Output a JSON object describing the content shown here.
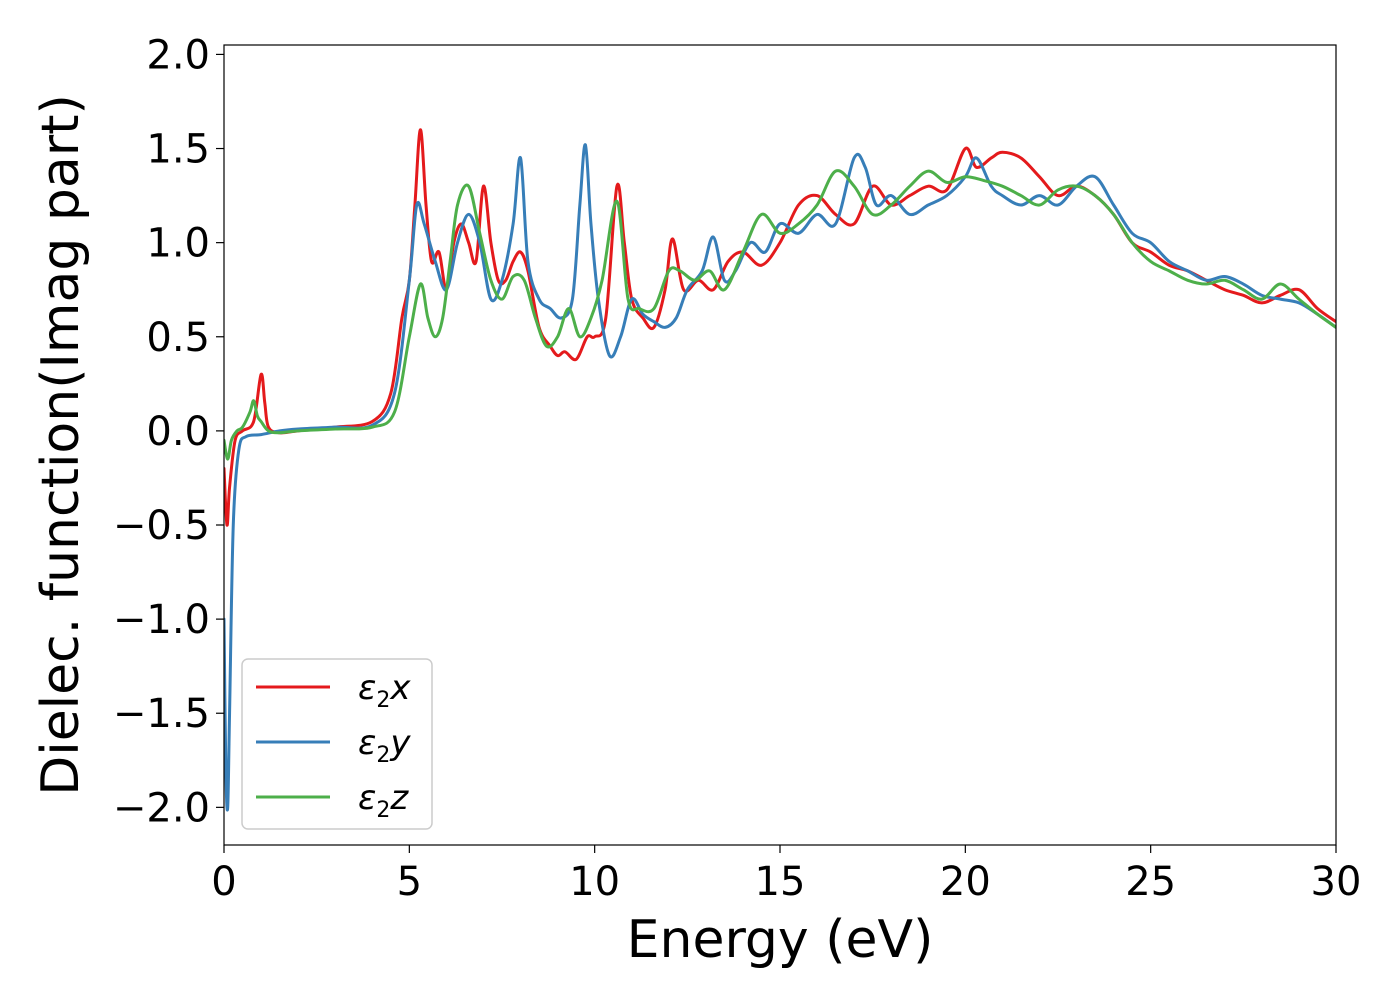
{
  "chart_data": {
    "type": "line",
    "xlabel": "Energy (eV)",
    "ylabel": "Dielec. function(Imag part)",
    "xlim": [
      0,
      30
    ],
    "ylim": [
      -2.2,
      2.05
    ],
    "xticks": [
      0,
      5,
      10,
      15,
      20,
      25,
      30
    ],
    "xtick_labels": [
      "0",
      "5",
      "10",
      "15",
      "20",
      "25",
      "30"
    ],
    "yticks": [
      -2.0,
      -1.5,
      -1.0,
      -0.5,
      0.0,
      0.5,
      1.0,
      1.5,
      2.0
    ],
    "ytick_labels": [
      "−2.0",
      "−1.5",
      "−1.0",
      "−0.5",
      "0.0",
      "0.5",
      "1.0",
      "1.5",
      "2.0"
    ],
    "grid": false,
    "legend_position": "lower-left",
    "series": [
      {
        "name": "ε₂x",
        "legend_base": "ε",
        "legend_sub": "2",
        "legend_suffix": "x",
        "color": "#e41a1c",
        "x": [
          0.0,
          0.08,
          0.15,
          0.3,
          0.5,
          0.8,
          1.0,
          1.1,
          1.2,
          1.5,
          2,
          3,
          4,
          4.5,
          4.8,
          5.0,
          5.15,
          5.3,
          5.45,
          5.6,
          5.8,
          6.0,
          6.2,
          6.4,
          6.6,
          6.8,
          7.0,
          7.2,
          7.4,
          7.6,
          7.8,
          8.0,
          8.2,
          8.5,
          8.8,
          9.0,
          9.2,
          9.5,
          9.8,
          10.0,
          10.3,
          10.6,
          10.8,
          11.0,
          11.3,
          11.6,
          11.9,
          12.1,
          12.4,
          12.8,
          13.2,
          13.6,
          14.0,
          14.5,
          15.0,
          15.5,
          16.0,
          16.5,
          17.0,
          17.5,
          18.0,
          18.5,
          19.0,
          19.5,
          20.0,
          20.3,
          20.7,
          21.0,
          21.5,
          22.0,
          22.5,
          23.0,
          23.5,
          24.0,
          24.5,
          25.0,
          25.5,
          26.0,
          26.5,
          27.0,
          27.5,
          28.0,
          28.5,
          29.0,
          29.5,
          30.0
        ],
        "y": [
          -0.2,
          -0.5,
          -0.3,
          -0.05,
          0.0,
          0.05,
          0.3,
          0.15,
          0.02,
          -0.01,
          0.0,
          0.02,
          0.05,
          0.2,
          0.6,
          0.8,
          1.2,
          1.6,
          1.2,
          0.9,
          0.95,
          0.75,
          1.0,
          1.1,
          1.0,
          0.9,
          1.3,
          1.0,
          0.8,
          0.8,
          0.9,
          0.95,
          0.85,
          0.55,
          0.45,
          0.4,
          0.42,
          0.38,
          0.5,
          0.5,
          0.6,
          1.3,
          1.0,
          0.7,
          0.6,
          0.55,
          0.75,
          1.02,
          0.75,
          0.8,
          0.75,
          0.9,
          0.95,
          0.88,
          1.0,
          1.2,
          1.25,
          1.15,
          1.1,
          1.3,
          1.2,
          1.25,
          1.3,
          1.28,
          1.5,
          1.4,
          1.45,
          1.48,
          1.45,
          1.35,
          1.25,
          1.3,
          1.25,
          1.15,
          1.0,
          0.95,
          0.88,
          0.85,
          0.8,
          0.75,
          0.72,
          0.68,
          0.72,
          0.75,
          0.65,
          0.58
        ]
      },
      {
        "name": "ε₂y",
        "legend_base": "ε",
        "legend_sub": "2",
        "legend_suffix": "y",
        "color": "#377eb8",
        "x": [
          0.0,
          0.05,
          0.1,
          0.15,
          0.25,
          0.4,
          0.6,
          1.0,
          1.5,
          2,
          3,
          4,
          4.6,
          5.0,
          5.2,
          5.4,
          5.7,
          6.0,
          6.3,
          6.6,
          6.9,
          7.2,
          7.5,
          7.8,
          8.0,
          8.2,
          8.5,
          8.8,
          9.1,
          9.4,
          9.6,
          9.75,
          9.9,
          10.1,
          10.4,
          10.7,
          11.0,
          11.3,
          11.6,
          11.9,
          12.2,
          12.5,
          12.9,
          13.2,
          13.5,
          13.8,
          14.2,
          14.6,
          15.0,
          15.5,
          16.0,
          16.5,
          17.0,
          17.3,
          17.6,
          18.0,
          18.5,
          19.0,
          19.5,
          20.0,
          20.3,
          20.7,
          21.0,
          21.5,
          22.0,
          22.5,
          23.0,
          23.5,
          24.0,
          24.5,
          25.0,
          25.5,
          26.0,
          26.5,
          27.0,
          27.5,
          28.0,
          28.5,
          29.0,
          29.5,
          30.0
        ],
        "y": [
          -1.0,
          -1.8,
          -2.0,
          -1.5,
          -0.5,
          -0.1,
          -0.03,
          -0.02,
          0.0,
          0.01,
          0.02,
          0.03,
          0.2,
          0.8,
          1.2,
          1.1,
          0.9,
          0.75,
          1.0,
          1.15,
          1.0,
          0.7,
          0.8,
          1.1,
          1.45,
          0.9,
          0.7,
          0.65,
          0.6,
          0.7,
          1.2,
          1.52,
          1.1,
          0.7,
          0.4,
          0.5,
          0.7,
          0.62,
          0.58,
          0.55,
          0.6,
          0.75,
          0.85,
          1.03,
          0.8,
          0.85,
          1.0,
          0.95,
          1.1,
          1.05,
          1.15,
          1.1,
          1.45,
          1.4,
          1.2,
          1.25,
          1.15,
          1.2,
          1.25,
          1.35,
          1.45,
          1.3,
          1.25,
          1.2,
          1.25,
          1.2,
          1.3,
          1.35,
          1.2,
          1.05,
          1.0,
          0.9,
          0.85,
          0.8,
          0.82,
          0.78,
          0.72,
          0.7,
          0.68,
          0.62,
          0.55
        ]
      },
      {
        "name": "ε₂z",
        "legend_base": "ε",
        "legend_sub": "2",
        "legend_suffix": "z",
        "color": "#4daf4a",
        "x": [
          0.0,
          0.1,
          0.2,
          0.35,
          0.5,
          0.7,
          0.8,
          0.9,
          1.0,
          1.2,
          1.5,
          2,
          3,
          4,
          4.6,
          5.0,
          5.3,
          5.5,
          5.7,
          5.9,
          6.1,
          6.3,
          6.6,
          6.9,
          7.2,
          7.5,
          7.8,
          8.1,
          8.4,
          8.7,
          9.0,
          9.3,
          9.6,
          9.9,
          10.2,
          10.6,
          10.9,
          11.2,
          11.6,
          12.0,
          12.3,
          12.7,
          13.1,
          13.5,
          14.0,
          14.5,
          15.0,
          15.5,
          16.0,
          16.5,
          17.0,
          17.5,
          18.0,
          18.5,
          19.0,
          19.5,
          20.0,
          20.5,
          21.0,
          21.5,
          22.0,
          22.5,
          23.0,
          23.5,
          24.0,
          24.5,
          25.0,
          25.5,
          26.0,
          26.5,
          27.0,
          27.5,
          28.0,
          28.5,
          29.0,
          29.5,
          30.0
        ],
        "y": [
          -0.05,
          -0.15,
          -0.05,
          0.0,
          0.02,
          0.1,
          0.16,
          0.08,
          0.05,
          0.0,
          -0.01,
          0.0,
          0.01,
          0.02,
          0.1,
          0.5,
          0.78,
          0.6,
          0.5,
          0.6,
          0.9,
          1.2,
          1.3,
          1.05,
          0.8,
          0.7,
          0.82,
          0.8,
          0.6,
          0.45,
          0.5,
          0.65,
          0.5,
          0.6,
          0.8,
          1.22,
          0.7,
          0.65,
          0.65,
          0.85,
          0.85,
          0.8,
          0.85,
          0.75,
          0.95,
          1.15,
          1.05,
          1.1,
          1.2,
          1.38,
          1.3,
          1.15,
          1.2,
          1.3,
          1.38,
          1.32,
          1.35,
          1.33,
          1.3,
          1.25,
          1.2,
          1.28,
          1.3,
          1.25,
          1.15,
          1.0,
          0.9,
          0.85,
          0.8,
          0.78,
          0.8,
          0.75,
          0.7,
          0.78,
          0.7,
          0.62,
          0.55
        ]
      }
    ]
  }
}
